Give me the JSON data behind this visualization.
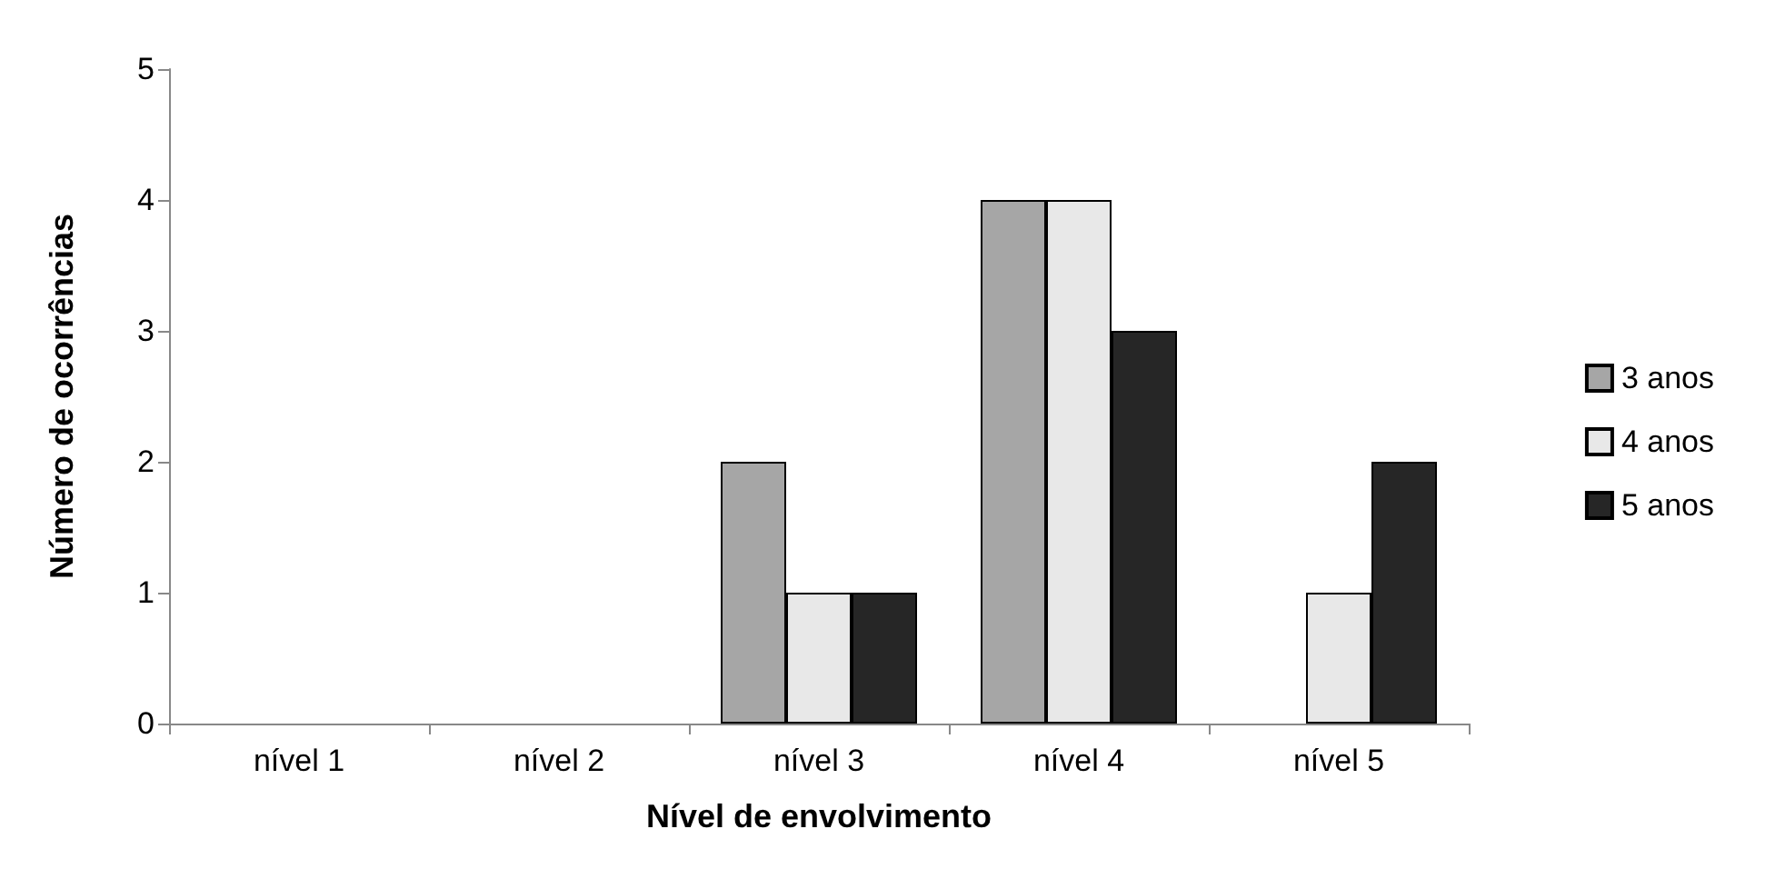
{
  "chart_data": {
    "type": "bar",
    "xlabel": "Nível de envolvimento",
    "ylabel": "Número de ocorrências",
    "categories": [
      "nível 1",
      "nível 2",
      "nível 3",
      "nível 4",
      "nível 5"
    ],
    "series": [
      {
        "name": "3 anos",
        "color": "#a6a6a6",
        "values": [
          0,
          0,
          2,
          4,
          0
        ]
      },
      {
        "name": "4 anos",
        "color": "#e8e8e8",
        "values": [
          0,
          0,
          1,
          4,
          1
        ]
      },
      {
        "name": "5 anos",
        "color": "#262626",
        "values": [
          0,
          0,
          1,
          3,
          2
        ]
      }
    ],
    "ylim": [
      0,
      5
    ],
    "yticks": [
      0,
      1,
      2,
      3,
      4,
      5
    ],
    "grid": false,
    "legend": "right"
  }
}
